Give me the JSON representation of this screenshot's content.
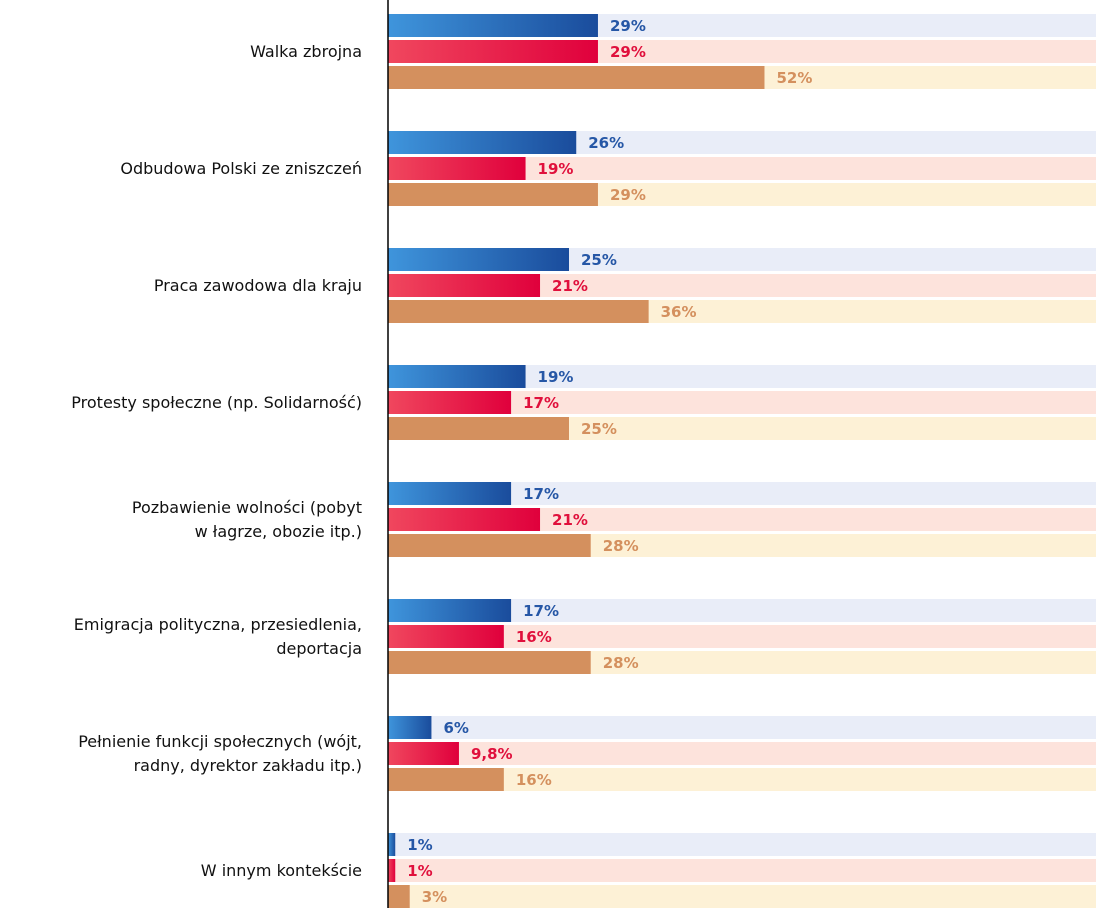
{
  "chart_data": {
    "type": "bar",
    "orientation": "horizontal",
    "categories": [
      "Walka zbrojna",
      "Odbudowa Polski ze zniszczeń",
      "Praca zawodowa dla kraju",
      "Protesty społeczne (np. Solidarność)",
      "Pozbawienie wolności (pobyt\nw łagrze, obozie itp.)",
      "Emigracja polityczna, przesiedlenia,\ndeportacja",
      "Pełnienie funkcji społecznych (wójt,\nradny, dyrektor zakładu itp.)",
      "W innym kontekście"
    ],
    "xlim": [
      0,
      100
    ],
    "series": [
      {
        "color": "#1a4c9c",
        "gradient_start": "#3f95dc",
        "track_color": "#e9edf8",
        "label_color": "#2657a6",
        "values": [
          29,
          26,
          25,
          19,
          17,
          17,
          6,
          1
        ],
        "value_labels": [
          "29%",
          "26%",
          "25%",
          "19%",
          "17%",
          "17%",
          "6%",
          "1%"
        ]
      },
      {
        "color": "#e0003c",
        "gradient_start": "#f0475e",
        "track_color": "#fde3dc",
        "label_color": "#e0103c",
        "values": [
          29,
          19,
          21,
          17,
          21,
          16,
          9.8,
          1
        ],
        "value_labels": [
          "29%",
          "19%",
          "21%",
          "17%",
          "21%",
          "16%",
          "9,8%",
          "1%"
        ]
      },
      {
        "color": "#d4905e",
        "gradient_start": "#d4905e",
        "track_color": "#fdf1d6",
        "label_color": "#d4905e",
        "values": [
          52,
          29,
          36,
          25,
          28,
          28,
          16,
          3
        ],
        "value_labels": [
          "52%",
          "29%",
          "36%",
          "25%",
          "28%",
          "28%",
          "16%",
          "3%"
        ]
      }
    ]
  }
}
